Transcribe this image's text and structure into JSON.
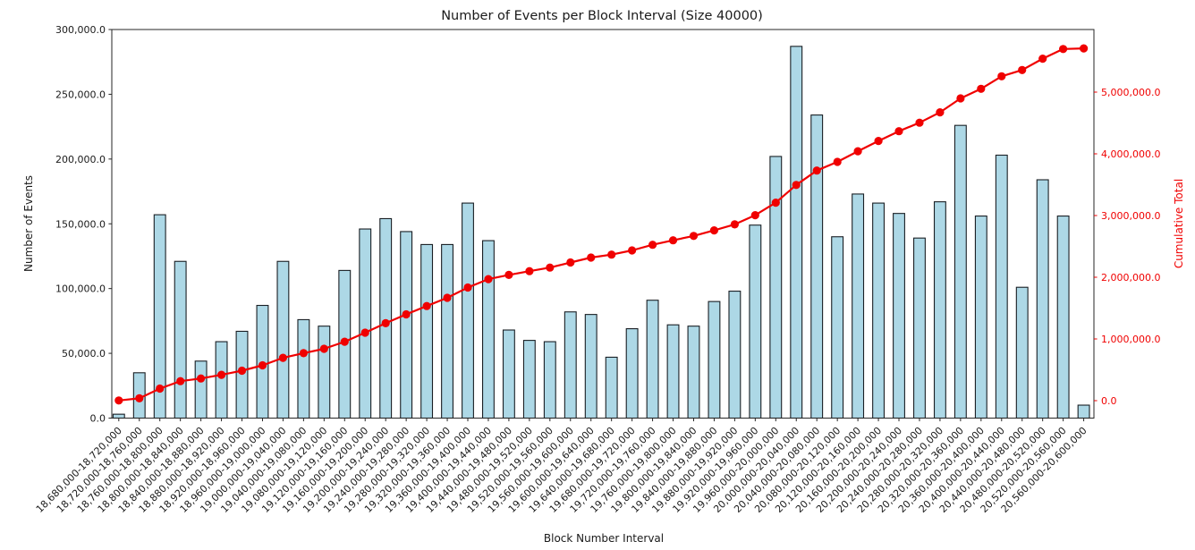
{
  "chart_data": {
    "type": "bar",
    "title": "Number of Events per Block Interval (Size 40000)",
    "xlabel": "Block Number Interval",
    "ylabel_left": "Number of Events",
    "ylabel_right": "Cumulative Total",
    "grid": false,
    "legend_position": "none",
    "colors": {
      "bar_fill": "#add8e6",
      "bar_edge": "#1a1f24",
      "line": "#f00000",
      "text": "#1a1a1a",
      "spine": "#262626"
    },
    "left_axis": {
      "range": [
        0,
        300000
      ],
      "tick_values": [
        0,
        50000,
        100000,
        150000,
        200000,
        250000,
        300000
      ],
      "tick_labels": [
        "0.0",
        "50,000.0",
        "100,000.0",
        "150,000.0",
        "200,000.0",
        "250,000.0",
        "300,000.0"
      ]
    },
    "right_axis": {
      "range": [
        -282600,
        6014000
      ],
      "tick_values": [
        0,
        1000000,
        2000000,
        3000000,
        4000000,
        5000000
      ],
      "tick_labels": [
        "0.0",
        "1,000,000.0",
        "2,000,000.0",
        "3,000,000.0",
        "4,000,000.0",
        "5,000,000.0"
      ]
    },
    "categories": [
      "18,680,000-18,720,000",
      "18,720,000-18,760,000",
      "18,760,000-18,800,000",
      "18,800,000-18,840,000",
      "18,840,000-18,880,000",
      "18,880,000-18,920,000",
      "18,920,000-18,960,000",
      "18,960,000-19,000,000",
      "19,000,000-19,040,000",
      "19,040,000-19,080,000",
      "19,080,000-19,120,000",
      "19,120,000-19,160,000",
      "19,160,000-19,200,000",
      "19,200,000-19,240,000",
      "19,240,000-19,280,000",
      "19,280,000-19,320,000",
      "19,320,000-19,360,000",
      "19,360,000-19,400,000",
      "19,400,000-19,440,000",
      "19,440,000-19,480,000",
      "19,480,000-19,520,000",
      "19,520,000-19,560,000",
      "19,560,000-19,600,000",
      "19,600,000-19,640,000",
      "19,640,000-19,680,000",
      "19,680,000-19,720,000",
      "19,720,000-19,760,000",
      "19,760,000-19,800,000",
      "19,800,000-19,840,000",
      "19,840,000-19,880,000",
      "19,880,000-19,920,000",
      "19,920,000-19,960,000",
      "19,960,000-20,000,000",
      "20,000,000-20,040,000",
      "20,040,000-20,080,000",
      "20,080,000-20,120,000",
      "20,120,000-20,160,000",
      "20,160,000-20,200,000",
      "20,200,000-20,240,000",
      "20,240,000-20,280,000",
      "20,280,000-20,320,000",
      "20,320,000-20,360,000",
      "20,360,000-20,400,000",
      "20,400,000-20,440,000",
      "20,440,000-20,480,000",
      "20,480,000-20,520,000",
      "20,520,000-20,560,000",
      "20,560,000-20,600,000"
    ],
    "series": [
      {
        "name": "Number of Events",
        "type": "bar",
        "axis": "left",
        "values": [
          3000,
          35000,
          157000,
          121000,
          44000,
          59000,
          67000,
          87000,
          121000,
          76000,
          71000,
          114000,
          146000,
          154000,
          144000,
          134000,
          134000,
          166000,
          137000,
          68000,
          60000,
          59000,
          82000,
          80000,
          47000,
          69000,
          91000,
          72000,
          71000,
          90000,
          98000,
          149000,
          202000,
          287000,
          234000,
          140000,
          173000,
          166000,
          158000,
          139000,
          167000,
          226000,
          156000,
          203000,
          101000,
          184000,
          156000,
          10000
        ]
      },
      {
        "name": "Cumulative Total",
        "type": "line",
        "axis": "right",
        "marker": "circle",
        "values": [
          3000,
          38000,
          195000,
          316000,
          360000,
          419000,
          486000,
          573000,
          694000,
          770000,
          841000,
          955000,
          1101000,
          1255000,
          1399000,
          1533000,
          1667000,
          1833000,
          1970000,
          2038000,
          2098000,
          2157000,
          2239000,
          2319000,
          2366000,
          2435000,
          2526000,
          2598000,
          2669000,
          2759000,
          2857000,
          3006000,
          3208000,
          3495000,
          3729000,
          3869000,
          4042000,
          4208000,
          4366000,
          4505000,
          4672000,
          4898000,
          5054000,
          5257000,
          5358000,
          5542000,
          5698000,
          5708000
        ]
      }
    ]
  }
}
